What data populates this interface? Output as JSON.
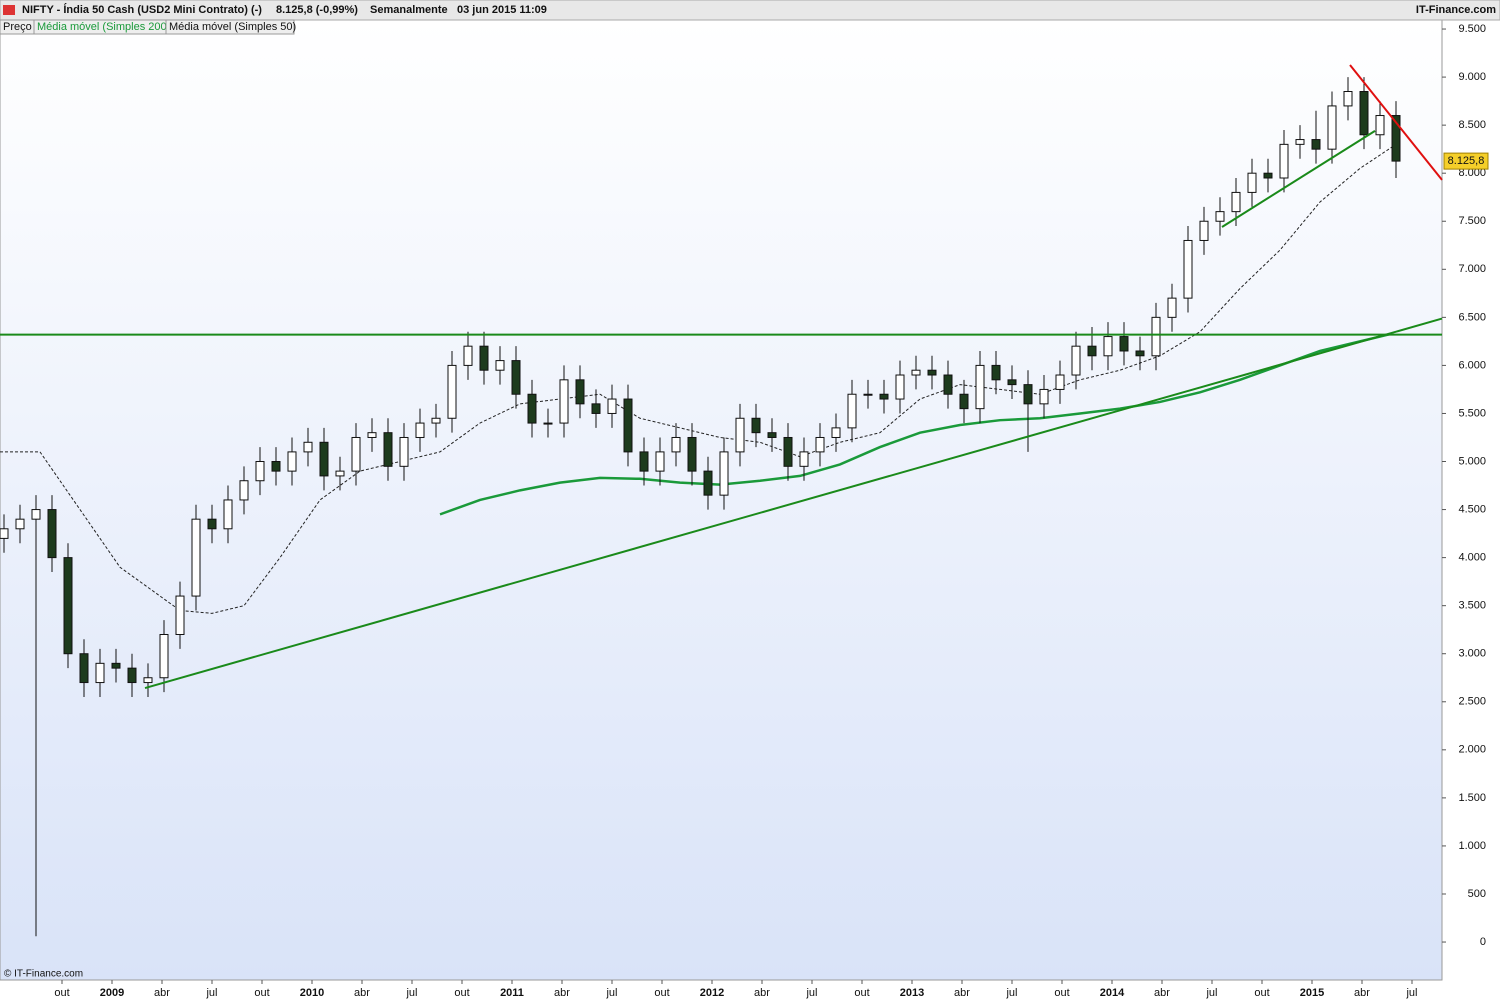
{
  "header": {
    "symbol": "NIFTY - Índia 50 Cash (USD2 Mini Contrato) (-)",
    "quote": "8.125,8 (-0,99%)",
    "period": "Semanalmente",
    "timestamp": "03 jun 2015 11:09",
    "brand": "IT-Finance.com"
  },
  "footer": "© IT-Finance.com",
  "chart_data": {
    "type": "candlestick",
    "x": [
      2008.46,
      2008.54,
      2008.62,
      2008.7,
      2008.78,
      2008.86,
      2008.94,
      2009.02,
      2009.1,
      2009.18,
      2009.26,
      2009.34,
      2009.42,
      2009.5,
      2009.58,
      2009.66,
      2009.74,
      2009.82,
      2009.9,
      2009.98,
      2010.06,
      2010.14,
      2010.22,
      2010.3,
      2010.38,
      2010.46,
      2010.54,
      2010.62,
      2010.7,
      2010.78,
      2010.86,
      2010.94,
      2011.02,
      2011.1,
      2011.18,
      2011.26,
      2011.34,
      2011.42,
      2011.5,
      2011.58,
      2011.66,
      2011.74,
      2011.82,
      2011.9,
      2011.98,
      2012.06,
      2012.14,
      2012.22,
      2012.3,
      2012.38,
      2012.46,
      2012.54,
      2012.62,
      2012.7,
      2012.78,
      2012.86,
      2012.94,
      2013.02,
      2013.1,
      2013.18,
      2013.26,
      2013.34,
      2013.42,
      2013.5,
      2013.58,
      2013.66,
      2013.74,
      2013.82,
      2013.9,
      2013.98,
      2014.06,
      2014.14,
      2014.22,
      2014.3,
      2014.38,
      2014.46,
      2014.54,
      2014.62,
      2014.7,
      2014.78,
      2014.86,
      2014.94,
      2015.02,
      2015.1,
      2015.18,
      2015.26,
      2015.34,
      2015.42
    ],
    "series": [
      {
        "name": "Preço",
        "open": [
          4200,
          4300,
          4400,
          4500,
          4000,
          3000,
          2700,
          2900,
          2850,
          2700,
          2750,
          3200,
          3600,
          4400,
          4300,
          4600,
          4800,
          5000,
          4900,
          5100,
          5200,
          4850,
          4900,
          5250,
          5300,
          4950,
          5250,
          5400,
          5450,
          6000,
          6200,
          5950,
          6050,
          5700,
          5400,
          5400,
          5850,
          5600,
          5500,
          5650,
          5100,
          4900,
          5100,
          5250,
          4900,
          4650,
          5100,
          5450,
          5300,
          5250,
          4950,
          5100,
          5250,
          5350,
          5700,
          5700,
          5650,
          5900,
          5950,
          5900,
          5700,
          5550,
          6000,
          5850,
          5800,
          5600,
          5750,
          5900,
          6200,
          6100,
          6300,
          6150,
          6100,
          6500,
          6700,
          7300,
          7500,
          7600,
          7800,
          8000,
          7950,
          8300,
          8350,
          8250,
          8700,
          8850,
          8400,
          8600
        ],
        "high": [
          4450,
          4550,
          4650,
          4650,
          4150,
          3150,
          3050,
          3050,
          3000,
          2900,
          3350,
          3750,
          4550,
          4550,
          4750,
          4950,
          5150,
          5150,
          5250,
          5350,
          5350,
          5050,
          5400,
          5450,
          5450,
          5400,
          5550,
          5600,
          6150,
          6350,
          6350,
          6200,
          6200,
          5850,
          5550,
          6000,
          6000,
          5750,
          5800,
          5800,
          5250,
          5250,
          5400,
          5400,
          5050,
          5250,
          5600,
          5600,
          5450,
          5400,
          5250,
          5400,
          5500,
          5850,
          5850,
          5850,
          6050,
          6100,
          6100,
          6050,
          5850,
          6150,
          6150,
          6000,
          5950,
          5900,
          6050,
          6350,
          6400,
          6450,
          6450,
          6300,
          6650,
          6850,
          7450,
          7650,
          7750,
          7950,
          8150,
          8150,
          8450,
          8500,
          8650,
          8850,
          9000,
          9000,
          8750,
          8750
        ],
        "low": [
          4050,
          4150,
          60,
          3850,
          2850,
          2550,
          2550,
          2700,
          2550,
          2550,
          2600,
          3050,
          3450,
          4150,
          4150,
          4450,
          4650,
          4750,
          4750,
          4950,
          4700,
          4700,
          4750,
          5100,
          4800,
          4800,
          5100,
          5250,
          5300,
          5850,
          5800,
          5800,
          5550,
          5250,
          5250,
          5250,
          5450,
          5350,
          5350,
          4950,
          4750,
          4750,
          4950,
          4750,
          4500,
          4500,
          4950,
          5150,
          5100,
          4800,
          4800,
          4950,
          5100,
          5200,
          5550,
          5500,
          5500,
          5750,
          5750,
          5550,
          5400,
          5400,
          5700,
          5650,
          5100,
          5450,
          5600,
          5750,
          5950,
          5950,
          6000,
          5950,
          5950,
          6350,
          6550,
          7150,
          7350,
          7450,
          7650,
          7800,
          7800,
          8150,
          8100,
          8100,
          8550,
          8250,
          8250,
          7950
        ],
        "close": [
          4300,
          4400,
          4500,
          4000,
          3000,
          2700,
          2900,
          2850,
          2700,
          2750,
          3200,
          3600,
          4400,
          4300,
          4600,
          4800,
          5000,
          4900,
          5100,
          5200,
          4850,
          4900,
          5250,
          5300,
          4950,
          5250,
          5400,
          5450,
          6000,
          6200,
          5950,
          6050,
          5700,
          5400,
          5400,
          5850,
          5600,
          5500,
          5650,
          5100,
          4900,
          5100,
          5250,
          4900,
          4650,
          5100,
          5450,
          5300,
          5250,
          4950,
          5100,
          5250,
          5350,
          5700,
          5700,
          5650,
          5900,
          5950,
          5900,
          5700,
          5550,
          6000,
          5850,
          5800,
          5600,
          5750,
          5900,
          6200,
          6100,
          6300,
          6150,
          6100,
          6500,
          6700,
          7300,
          7500,
          7600,
          7800,
          8000,
          7950,
          8300,
          8350,
          8250,
          8700,
          8850,
          8400,
          8600,
          8125.8
        ]
      }
    ],
    "lines": [
      {
        "name": "Média móvel (Simples 200)",
        "color": "#1a9a3a",
        "x": [
          2010.64,
          2010.84,
          2011.04,
          2011.24,
          2011.44,
          2011.64,
          2011.84,
          2012.04,
          2012.24,
          2012.44,
          2012.64,
          2012.84,
          2013.04,
          2013.24,
          2013.44,
          2013.64,
          2013.84,
          2014.04,
          2014.24,
          2014.44,
          2014.64,
          2014.84,
          2015.04,
          2015.24,
          2015.4
        ],
        "values": [
          4450,
          4600,
          4700,
          4780,
          4830,
          4820,
          4780,
          4760,
          4800,
          4850,
          4970,
          5150,
          5300,
          5380,
          5430,
          5450,
          5500,
          5550,
          5620,
          5720,
          5850,
          6000,
          6150,
          6250,
          6330
        ]
      },
      {
        "name": "Média móvel (Simples 50)",
        "color": "#222222",
        "dashed": true,
        "x": [
          2008.44,
          2008.64,
          2008.84,
          2009.04,
          2009.24,
          2009.34,
          2009.5,
          2009.66,
          2009.84,
          2010.04,
          2010.24,
          2010.44,
          2010.64,
          2010.84,
          2011.04,
          2011.24,
          2011.44,
          2011.64,
          2011.84,
          2012.04,
          2012.24,
          2012.44,
          2012.64,
          2012.84,
          2013.04,
          2013.24,
          2013.44,
          2013.64,
          2013.84,
          2014.04,
          2014.24,
          2014.44,
          2014.64,
          2014.84,
          2015.04,
          2015.24,
          2015.42
        ],
        "values": [
          5100,
          5100,
          4500,
          3900,
          3600,
          3450,
          3420,
          3500,
          4000,
          4600,
          4900,
          5000,
          5100,
          5400,
          5600,
          5650,
          5700,
          5450,
          5350,
          5250,
          5200,
          5050,
          5200,
          5300,
          5650,
          5800,
          5750,
          5700,
          5850,
          5950,
          6100,
          6350,
          6800,
          7200,
          7700,
          8050,
          8300
        ]
      }
    ],
    "trendlines": [
      {
        "color": "#1a8a1a",
        "x": [
          2008.44,
          2015.65
        ],
        "values": [
          6320,
          6320
        ]
      },
      {
        "color": "#1a8a1a",
        "x": [
          2009.165,
          2015.65
        ],
        "values": [
          2643,
          6487
        ]
      },
      {
        "color": "#1a8a1a",
        "x": [
          2014.55,
          2015.315
        ],
        "values": [
          7440,
          8440
        ]
      },
      {
        "color": "#e01010",
        "x": [
          2015.19,
          2015.65
        ],
        "values": [
          9126,
          7930
        ]
      }
    ],
    "last_price": {
      "value": 8125.8,
      "label": "8.125,8"
    },
    "xlim": [
      2008.44,
      2015.65
    ],
    "xticks": [
      {
        "value": 2008.75,
        "label": "out"
      },
      2009,
      {
        "value": 2009.25,
        "label": "abr"
      },
      {
        "value": 2009.5,
        "label": "jul"
      },
      {
        "value": 2009.75,
        "label": "out"
      },
      2010,
      {
        "value": 2010.25,
        "label": "abr"
      },
      {
        "value": 2010.5,
        "label": "jul"
      },
      {
        "value": 2010.75,
        "label": "out"
      },
      2011,
      {
        "value": 2011.25,
        "label": "abr"
      },
      {
        "value": 2011.5,
        "label": "jul"
      },
      {
        "value": 2011.75,
        "label": "out"
      },
      2012,
      {
        "value": 2012.25,
        "label": "abr"
      },
      {
        "value": 2012.5,
        "label": "jul"
      },
      {
        "value": 2012.75,
        "label": "out"
      },
      2013,
      {
        "value": 2013.25,
        "label": "abr"
      },
      {
        "value": 2013.5,
        "label": "jul"
      },
      {
        "value": 2013.75,
        "label": "out"
      },
      2014,
      {
        "value": 2014.25,
        "label": "abr"
      },
      {
        "value": 2014.5,
        "label": "jul"
      },
      {
        "value": 2014.75,
        "label": "out"
      },
      2015,
      {
        "value": 2015.25,
        "label": "abr"
      },
      {
        "value": 2015.5,
        "label": "jul"
      }
    ],
    "ylim": [
      -395,
      9594
    ],
    "yticks": [
      0,
      500,
      {
        "value": 1000,
        "label": "1.000"
      },
      {
        "value": 1500,
        "label": "1.500"
      },
      {
        "value": 2000,
        "label": "2.000"
      },
      {
        "value": 2500,
        "label": "2.500"
      },
      {
        "value": 3000,
        "label": "3.000"
      },
      {
        "value": 3500,
        "label": "3.500"
      },
      {
        "value": 4000,
        "label": "4.000"
      },
      {
        "value": 4500,
        "label": "4.500"
      },
      {
        "value": 5000,
        "label": "5.000"
      },
      {
        "value": 5500,
        "label": "5.500"
      },
      {
        "value": 6000,
        "label": "6.000"
      },
      {
        "value": 6500,
        "label": "6.500"
      },
      {
        "value": 7000,
        "label": "7.000"
      },
      {
        "value": 7500,
        "label": "7.500"
      },
      {
        "value": 8000,
        "label": "8.000"
      },
      {
        "value": 8500,
        "label": "8.500"
      },
      {
        "value": 9000,
        "label": "9.000"
      },
      {
        "value": 9500,
        "label": "9.500"
      }
    ]
  }
}
